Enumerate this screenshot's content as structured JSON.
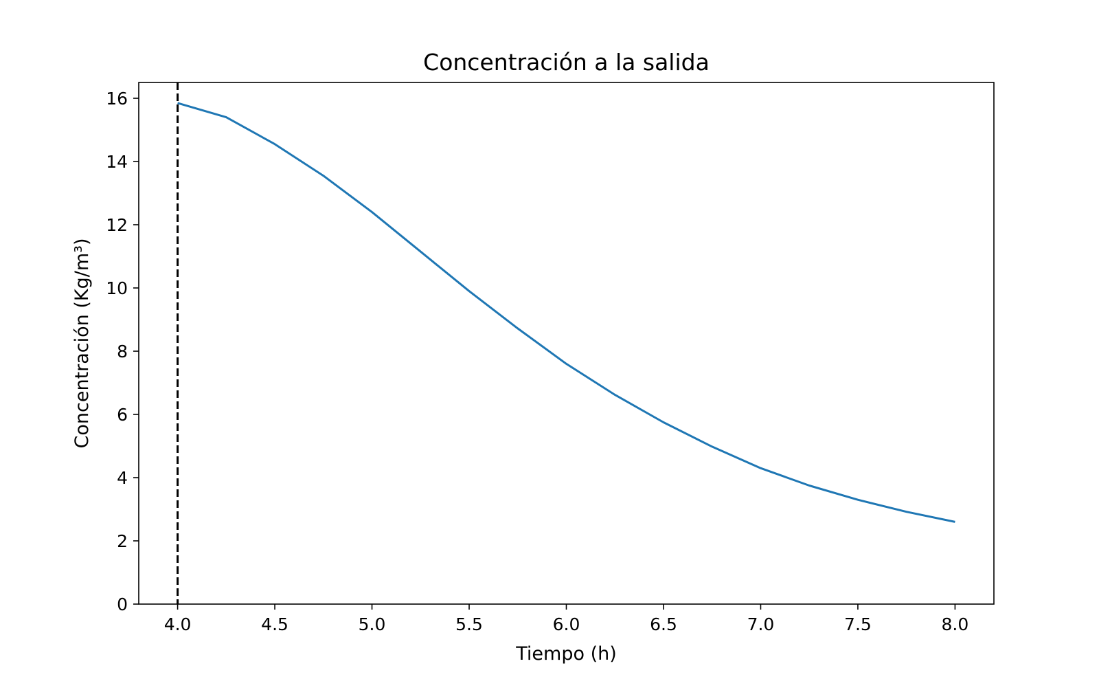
{
  "chart_data": {
    "type": "line",
    "title": "Concentración a la salida",
    "xlabel": "Tiempo (h)",
    "ylabel": "Concentración (Kg/m³)",
    "xlim": [
      3.8,
      8.2
    ],
    "ylim": [
      0,
      16.5
    ],
    "x_ticks": [
      "4.0",
      "4.5",
      "5.0",
      "5.5",
      "6.0",
      "6.5",
      "7.0",
      "7.5",
      "8.0"
    ],
    "y_ticks": [
      "0",
      "2",
      "4",
      "6",
      "8",
      "10",
      "12",
      "14",
      "16"
    ],
    "grid": false,
    "series": [
      {
        "color": "#1f77b4",
        "x": [
          4.0,
          4.25,
          4.5,
          4.75,
          5.0,
          5.25,
          5.5,
          5.75,
          6.0,
          6.25,
          6.5,
          6.75,
          7.0,
          7.25,
          7.5,
          7.75,
          8.0
        ],
        "y": [
          15.85,
          15.4,
          14.55,
          13.55,
          12.4,
          11.15,
          9.9,
          8.72,
          7.6,
          6.62,
          5.75,
          4.98,
          4.3,
          3.75,
          3.3,
          2.92,
          2.6
        ]
      }
    ],
    "reference_lines": [
      {
        "orientation": "vertical",
        "x": 4.0,
        "style": "dashed",
        "color": "#000000"
      }
    ]
  }
}
